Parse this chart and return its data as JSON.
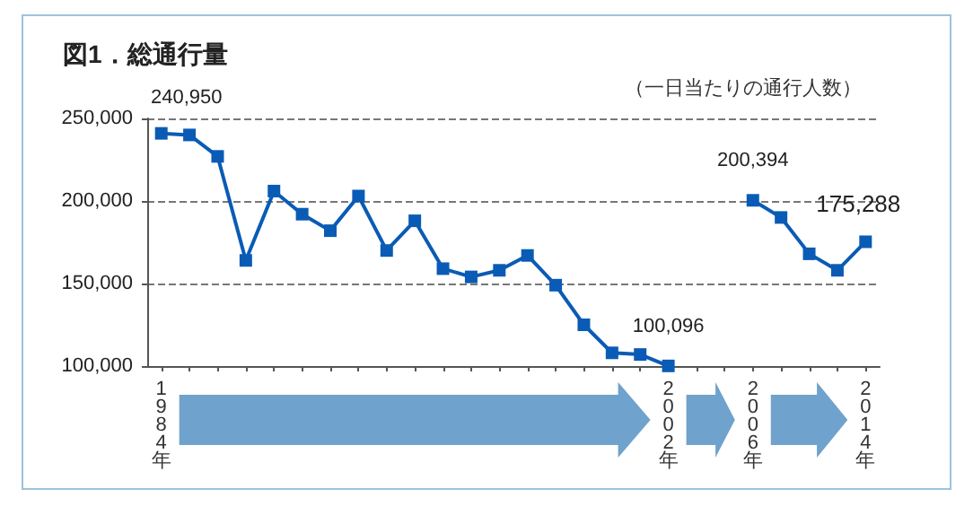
{
  "chart_data": {
    "type": "line",
    "title": "図1．総通行量",
    "annotations": [
      "（一日当たりの通行人数）"
    ],
    "categories": [
      "1984年",
      null,
      null,
      null,
      null,
      null,
      null,
      null,
      null,
      null,
      null,
      null,
      null,
      null,
      null,
      null,
      null,
      null,
      "2002年",
      null,
      null,
      "2006年",
      null,
      null,
      null,
      "2014年"
    ],
    "series": [
      {
        "color": "#0a5bb5",
        "values": [
          240950,
          240000,
          227000,
          164000,
          206000,
          192000,
          182000,
          203000,
          170000,
          188000,
          159000,
          154000,
          158000,
          167000,
          149000,
          125000,
          108000,
          107000,
          100096,
          null,
          null,
          200394,
          190000,
          168000,
          158000,
          175288
        ],
        "value_labels": [
          "240,950",
          null,
          null,
          null,
          null,
          null,
          null,
          null,
          null,
          null,
          null,
          null,
          null,
          null,
          null,
          null,
          null,
          null,
          "100,096",
          null,
          null,
          "200,394",
          null,
          null,
          null,
          "175,288"
        ]
      }
    ],
    "ylim": [
      100000,
      250000
    ],
    "yticks": [
      {
        "value": 100000,
        "label": "100,000"
      },
      {
        "value": 150000,
        "label": "150,000"
      },
      {
        "value": 200000,
        "label": "200,000"
      },
      {
        "value": 250000,
        "label": "250,000"
      }
    ],
    "grid": "y",
    "marker": "square",
    "line_style": "solid"
  }
}
